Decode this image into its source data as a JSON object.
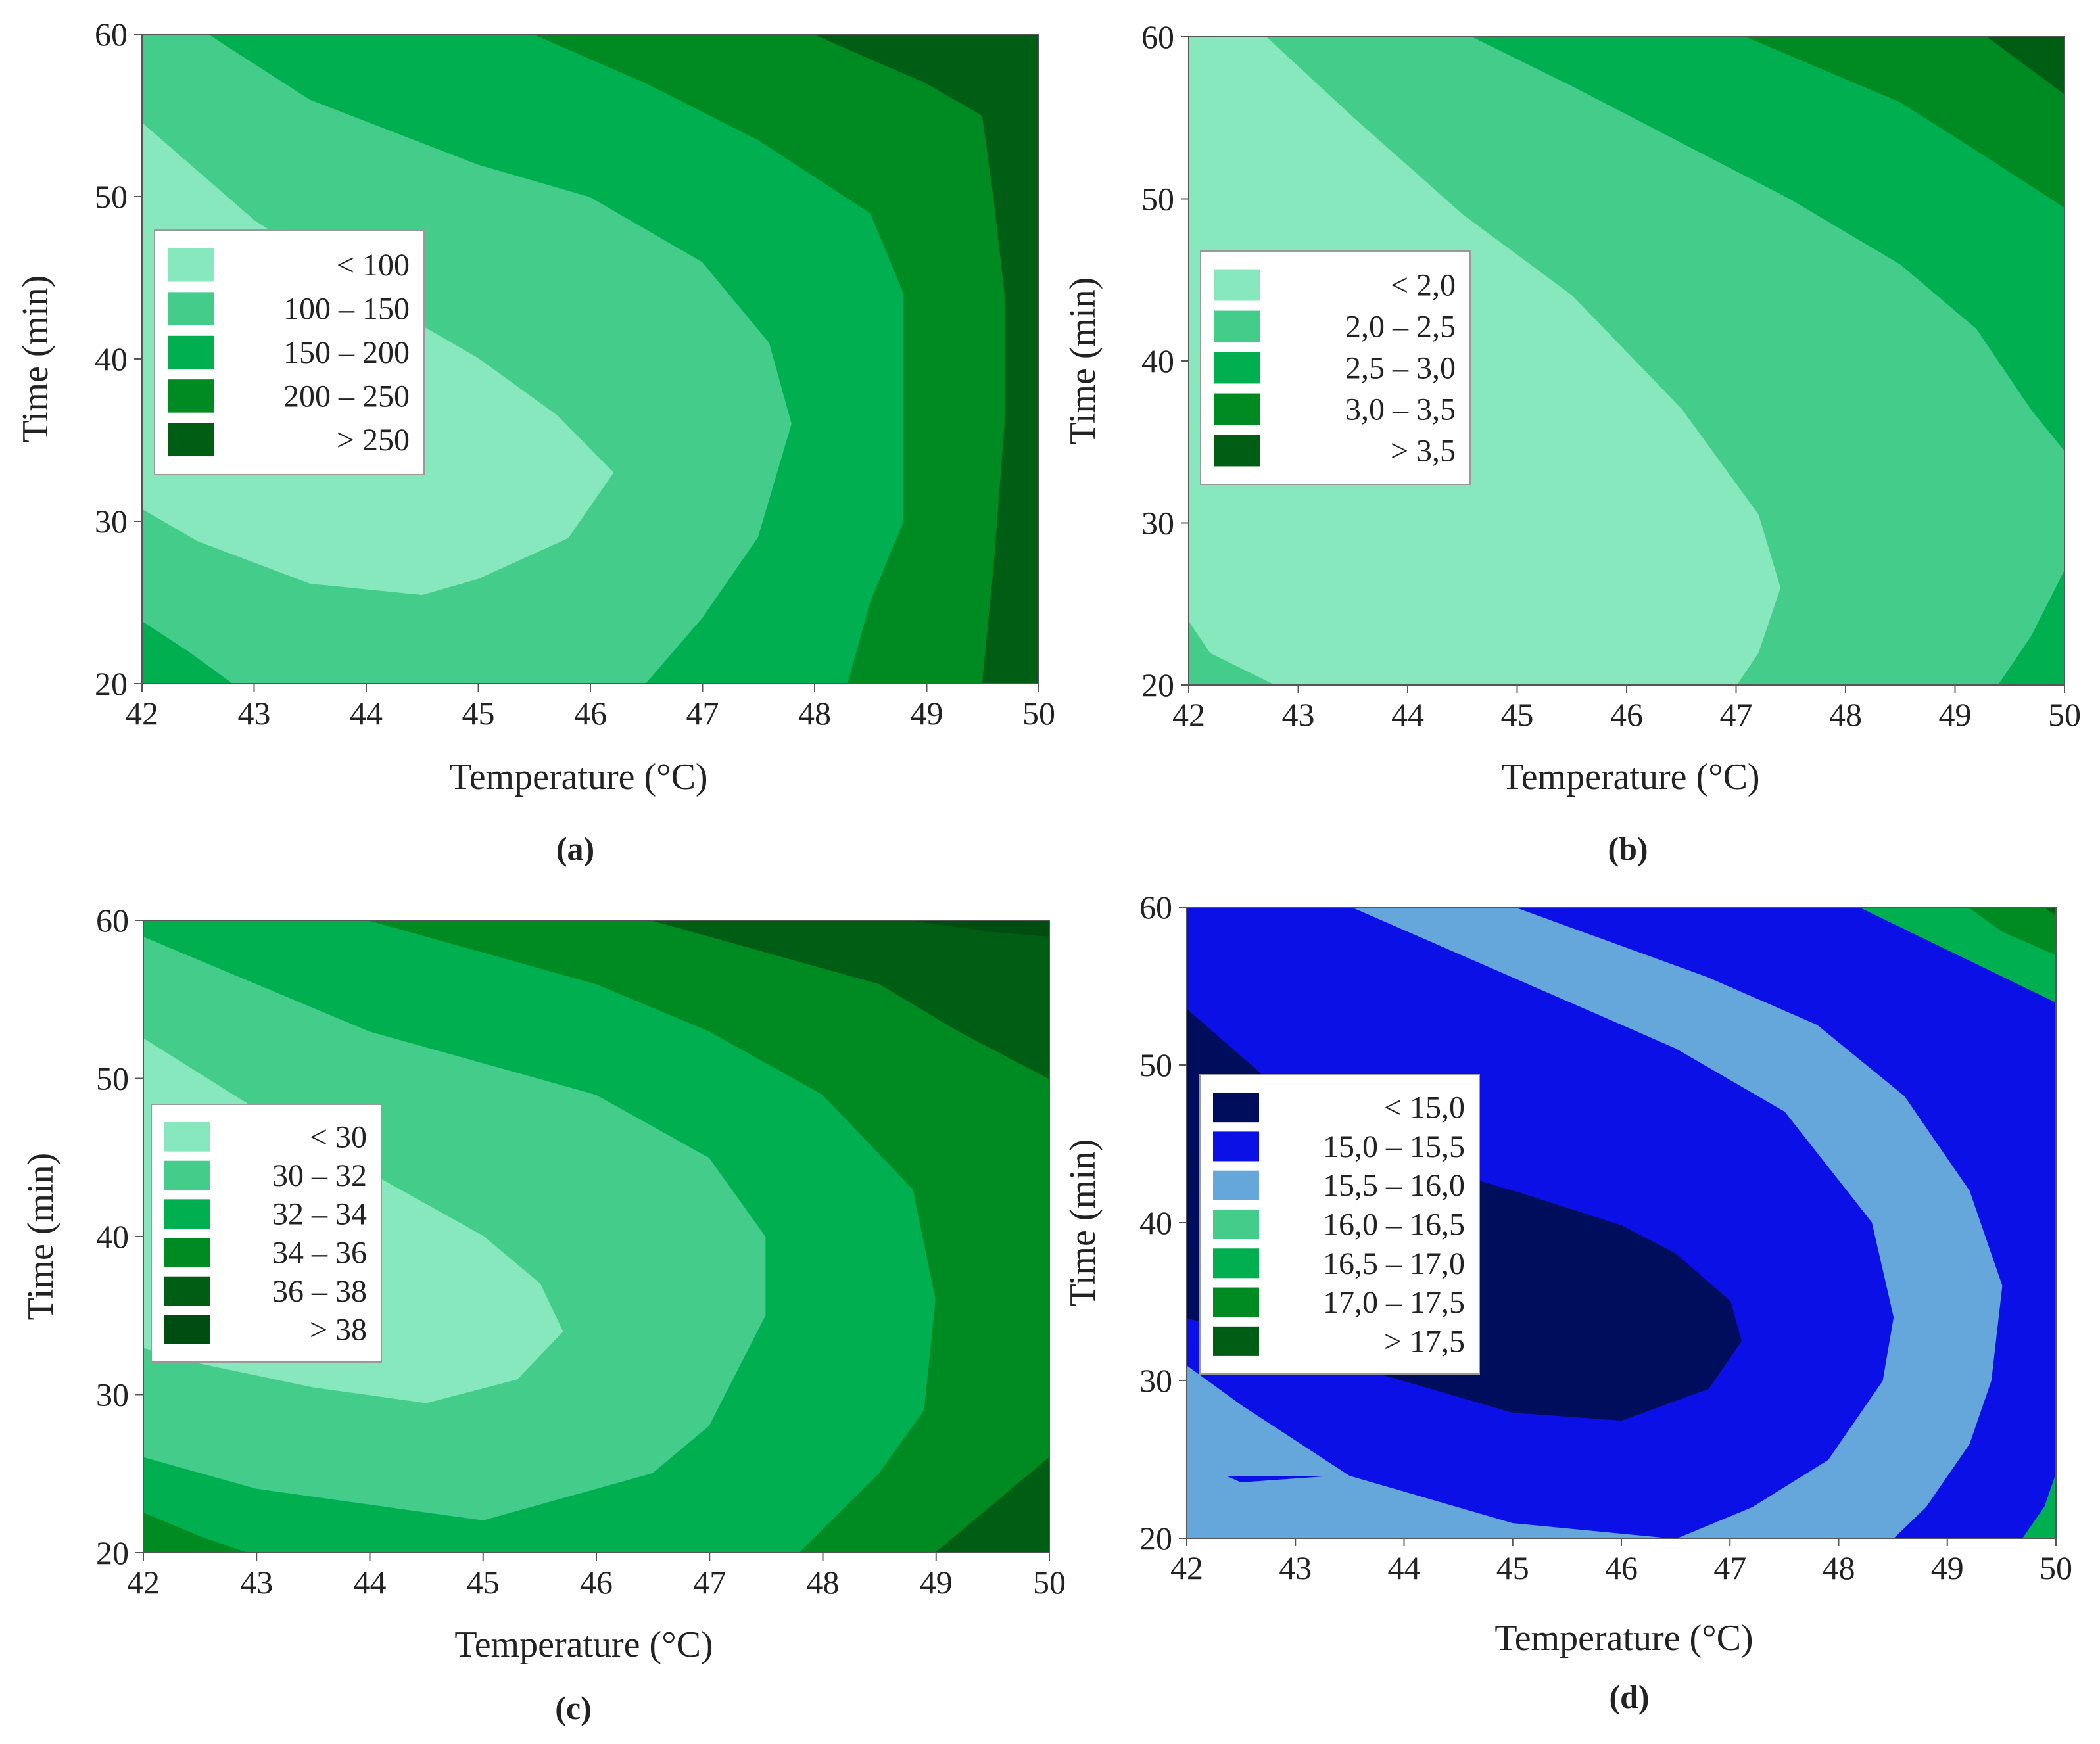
{
  "figure": {
    "panel_count": 4
  },
  "chart_data": [
    {
      "type": "contour",
      "panel_label": "(a)",
      "xlabel": "Temperature (°C)",
      "ylabel": "Time (min)",
      "xlim": [
        42,
        50
      ],
      "ylim": [
        20,
        60
      ],
      "xticks": [
        "42",
        "43",
        "44",
        "45",
        "46",
        "47",
        "48",
        "49",
        "50"
      ],
      "yticks": [
        "20",
        "30",
        "40",
        "50",
        "60"
      ],
      "legend_position": "left-middle",
      "levels": [
        {
          "label": "< 100",
          "color": "#87e7bd"
        },
        {
          "label": "100 – 150",
          "color": "#44cc8a"
        },
        {
          "label": "150 – 200",
          "color": "#00b050"
        },
        {
          "label": "200 – 250",
          "color": "#008a22"
        },
        {
          "label": "> 250",
          "color": "#005e14"
        }
      ],
      "regions": [
        {
          "level": 0,
          "outline": [
            [
              42,
              54.5
            ],
            [
              43,
              48.5
            ],
            [
              44,
              44
            ],
            [
              45,
              40
            ],
            [
              45.7,
              36.5
            ],
            [
              46.2,
              33
            ],
            [
              45.8,
              29
            ],
            [
              45,
              26.5
            ],
            [
              44.5,
              25.5
            ],
            [
              43.5,
              26.2
            ],
            [
              42.5,
              28.8
            ],
            [
              42,
              30.8
            ]
          ]
        },
        {
          "level": 2,
          "outline": [
            [
              42.6,
              60
            ],
            [
              43.5,
              56
            ],
            [
              45,
              52
            ],
            [
              46,
              50
            ],
            [
              47,
              46
            ],
            [
              47.6,
              41
            ],
            [
              47.8,
              36
            ],
            [
              47.5,
              29
            ],
            [
              47,
              24
            ],
            [
              46.5,
              20
            ],
            [
              50,
              20
            ],
            [
              50,
              60
            ]
          ]
        },
        {
          "level": 2,
          "outline": [
            [
              42,
              23.8
            ],
            [
              42.4,
              22
            ],
            [
              42.8,
              20
            ],
            [
              42,
              20
            ]
          ]
        },
        {
          "level": 3,
          "outline": [
            [
              45.5,
              60
            ],
            [
              46.5,
              57
            ],
            [
              47.5,
              53.5
            ],
            [
              48.5,
              49
            ],
            [
              48.8,
              44
            ],
            [
              48.8,
              38
            ],
            [
              48.8,
              30
            ],
            [
              48.5,
              25
            ],
            [
              48.3,
              20
            ],
            [
              50,
              20
            ],
            [
              50,
              60
            ]
          ]
        },
        {
          "level": 4,
          "outline": [
            [
              48,
              60
            ],
            [
              49,
              57
            ],
            [
              49.5,
              55
            ],
            [
              49.6,
              50
            ],
            [
              49.7,
              44
            ],
            [
              49.7,
              36
            ],
            [
              49.6,
              27
            ],
            [
              49.5,
              20
            ],
            [
              50,
              20
            ],
            [
              50,
              60
            ]
          ]
        }
      ]
    },
    {
      "type": "contour",
      "panel_label": "(b)",
      "xlabel": "Temperature (°C)",
      "ylabel": "Time (min)",
      "xlim": [
        42,
        50
      ],
      "ylim": [
        20,
        60
      ],
      "xticks": [
        "42",
        "43",
        "44",
        "45",
        "46",
        "47",
        "48",
        "49",
        "50"
      ],
      "yticks": [
        "20",
        "30",
        "40",
        "50",
        "60"
      ],
      "legend_position": "left-middle",
      "levels": [
        {
          "label": "< 2,0",
          "color": "#87e7bd"
        },
        {
          "label": "2,0 – 2,5",
          "color": "#44cc8a"
        },
        {
          "label": "2,5 – 3,0",
          "color": "#00b050"
        },
        {
          "label": "3,0 – 3,5",
          "color": "#008a22"
        },
        {
          "label": "> 3,5",
          "color": "#005e14"
        }
      ],
      "regions": [
        {
          "level": 0,
          "outline": [
            [
              42,
              60
            ],
            [
              42.7,
              60
            ],
            [
              43.5,
              55
            ],
            [
              44.5,
              49
            ],
            [
              45.5,
              44
            ],
            [
              46.5,
              37
            ],
            [
              47.2,
              30.5
            ],
            [
              47.4,
              26
            ],
            [
              47.2,
              22
            ],
            [
              47,
              20
            ],
            [
              42.8,
              20
            ],
            [
              42.2,
              22
            ],
            [
              42,
              24
            ]
          ]
        },
        {
          "level": 2,
          "outline": [
            [
              44.6,
              60
            ],
            [
              45.5,
              57
            ],
            [
              46.5,
              53.5
            ],
            [
              47.5,
              50
            ],
            [
              48.5,
              46
            ],
            [
              49.2,
              42
            ],
            [
              49.7,
              37
            ],
            [
              50,
              34.5
            ],
            [
              50,
              60
            ]
          ]
        },
        {
          "level": 2,
          "outline": [
            [
              49.4,
              20
            ],
            [
              49.7,
              23
            ],
            [
              50,
              27
            ],
            [
              50,
              20
            ]
          ]
        },
        {
          "level": 3,
          "outline": [
            [
              47.1,
              60
            ],
            [
              47.8,
              58
            ],
            [
              48.5,
              56
            ],
            [
              49.2,
              53
            ],
            [
              50,
              49.5
            ],
            [
              50,
              60
            ]
          ]
        },
        {
          "level": 4,
          "outline": [
            [
              49.3,
              60
            ],
            [
              49.7,
              58
            ],
            [
              50,
              56.5
            ],
            [
              50,
              60
            ]
          ]
        }
      ]
    },
    {
      "type": "contour",
      "panel_label": "(c)",
      "xlabel": "Temperature (°C)",
      "ylabel": "Time (min)",
      "xlim": [
        42,
        50
      ],
      "ylim": [
        20,
        60
      ],
      "xticks": [
        "42",
        "43",
        "44",
        "45",
        "46",
        "47",
        "48",
        "49",
        "50"
      ],
      "yticks": [
        "20",
        "30",
        "40",
        "50",
        "60"
      ],
      "legend_position": "left-middle",
      "levels": [
        {
          "label": "< 30",
          "color": "#87e7bd"
        },
        {
          "label": "30 – 32",
          "color": "#44cc8a"
        },
        {
          "label": "32 – 34",
          "color": "#00b050"
        },
        {
          "label": "34 – 36",
          "color": "#008a22"
        },
        {
          "label": "36 – 38",
          "color": "#005e14"
        },
        {
          "label": "> 38",
          "color": "#004d11"
        }
      ],
      "regions": [
        {
          "level": 0,
          "outline": [
            [
              42,
              52.5
            ],
            [
              43,
              48
            ],
            [
              44,
              44
            ],
            [
              45,
              40
            ],
            [
              45.5,
              37
            ],
            [
              45.7,
              34
            ],
            [
              45.3,
              31
            ],
            [
              44.5,
              29.5
            ],
            [
              43.5,
              30.5
            ],
            [
              42.5,
              32
            ],
            [
              42,
              33
            ]
          ]
        },
        {
          "level": 2,
          "outline": [
            [
              42,
              59
            ],
            [
              43,
              56
            ],
            [
              44,
              53
            ],
            [
              45,
              51
            ],
            [
              46,
              49
            ],
            [
              47,
              45
            ],
            [
              47.5,
              40
            ],
            [
              47.5,
              35
            ],
            [
              47,
              28
            ],
            [
              46.5,
              25
            ],
            [
              45,
              22
            ],
            [
              43,
              24
            ],
            [
              42,
              26
            ],
            [
              42,
              20
            ],
            [
              50,
              20
            ],
            [
              50,
              60
            ],
            [
              42,
              60
            ]
          ]
        },
        {
          "level": 3,
          "outline": [
            [
              44,
              60
            ],
            [
              45,
              58
            ],
            [
              46,
              56
            ],
            [
              47,
              53
            ],
            [
              48,
              49
            ],
            [
              48.8,
              43
            ],
            [
              49,
              36
            ],
            [
              48.9,
              29
            ],
            [
              48.5,
              25
            ],
            [
              47.8,
              20
            ],
            [
              50,
              20
            ],
            [
              50,
              60
            ]
          ]
        },
        {
          "level": 3,
          "outline": [
            [
              42,
              22.5
            ],
            [
              42.5,
              21
            ],
            [
              42.9,
              20
            ],
            [
              42,
              20
            ]
          ]
        },
        {
          "level": 4,
          "outline": [
            [
              46.5,
              60
            ],
            [
              47.5,
              58
            ],
            [
              48.5,
              56
            ],
            [
              49.2,
              53
            ],
            [
              50,
              50
            ],
            [
              50,
              60
            ]
          ]
        },
        {
          "level": 4,
          "outline": [
            [
              49,
              20
            ],
            [
              49.5,
              23
            ],
            [
              50,
              26
            ],
            [
              50,
              20
            ]
          ]
        },
        {
          "level": 5,
          "outline": [
            [
              48.8,
              60
            ],
            [
              49.5,
              59.3
            ],
            [
              50,
              59
            ],
            [
              50,
              60
            ]
          ]
        }
      ]
    },
    {
      "type": "contour",
      "panel_label": "(d)",
      "xlabel": "Temperature (°C)",
      "ylabel": "Time (min)",
      "xlim": [
        42,
        50
      ],
      "ylim": [
        20,
        60
      ],
      "xticks": [
        "42",
        "43",
        "44",
        "45",
        "46",
        "47",
        "48",
        "49",
        "50"
      ],
      "yticks": [
        "20",
        "30",
        "40",
        "50",
        "60"
      ],
      "legend_position": "left-middle",
      "levels": [
        {
          "label": "< 15,0",
          "color": "#000d5c"
        },
        {
          "label": "15,0 – 15,5",
          "color": "#0a10e6"
        },
        {
          "label": "15,5 – 16,0",
          "color": "#65a6db"
        },
        {
          "label": "16,0 – 16,5",
          "color": "#44cc8a"
        },
        {
          "label": "16,5 – 17,0",
          "color": "#00b050"
        },
        {
          "label": "17,0 – 17,5",
          "color": "#008a22"
        },
        {
          "label": "> 17,5",
          "color": "#005e14"
        }
      ],
      "regions": [
        {
          "level": 2,
          "outline": [
            [
              42,
              60
            ],
            [
              45,
              60
            ],
            [
              45.8,
              58
            ],
            [
              46.8,
              55.5
            ],
            [
              47.8,
              52.5
            ],
            [
              48.6,
              48
            ],
            [
              49.2,
              42
            ],
            [
              49.5,
              36
            ],
            [
              49.4,
              30
            ],
            [
              49.2,
              26
            ],
            [
              48.8,
              22
            ],
            [
              48.5,
              20
            ],
            [
              42,
              20
            ],
            [
              42,
              25
            ],
            [
              42.5,
              23.5
            ],
            [
              43.5,
              24
            ],
            [
              42,
              24
            ]
          ]
        },
        {
          "level": 1,
          "outline": [
            [
              42,
              60
            ],
            [
              43.5,
              60
            ],
            [
              44.5,
              57
            ],
            [
              45.5,
              54
            ],
            [
              46.5,
              51
            ],
            [
              47.5,
              47
            ],
            [
              48.3,
              40
            ],
            [
              48.5,
              34
            ],
            [
              48.4,
              30
            ],
            [
              47.9,
              25
            ],
            [
              47.2,
              22
            ],
            [
              46.5,
              20
            ],
            [
              45,
              21
            ],
            [
              43.5,
              24
            ],
            [
              42.5,
              28.5
            ],
            [
              42,
              31
            ]
          ]
        },
        {
          "level": 0,
          "outline": [
            [
              42,
              53.5
            ],
            [
              43,
              47.5
            ],
            [
              44,
              44
            ],
            [
              45,
              42
            ],
            [
              46,
              39.8
            ],
            [
              46.5,
              38
            ],
            [
              47,
              35
            ],
            [
              47.1,
              32.5
            ],
            [
              46.8,
              29.5
            ],
            [
              46,
              27.5
            ],
            [
              45,
              28
            ],
            [
              44,
              30
            ],
            [
              43,
              32
            ],
            [
              42,
              34
            ]
          ]
        },
        {
          "level": 4,
          "outline": [
            [
              48.2,
              60
            ],
            [
              48.8,
              58
            ],
            [
              49.4,
              56
            ],
            [
              50,
              54
            ],
            [
              50,
              60
            ]
          ]
        },
        {
          "level": 4,
          "outline": [
            [
              49.7,
              20
            ],
            [
              49.9,
              22
            ],
            [
              50,
              24
            ],
            [
              50,
              20
            ]
          ]
        },
        {
          "level": 5,
          "outline": [
            [
              49.2,
              60
            ],
            [
              49.5,
              58.5
            ],
            [
              50,
              57
            ],
            [
              50,
              60
            ]
          ]
        },
        {
          "level": 6,
          "outline": [
            [
              49.9,
              60
            ],
            [
              50,
              59.5
            ],
            [
              50,
              60
            ]
          ]
        }
      ]
    }
  ]
}
